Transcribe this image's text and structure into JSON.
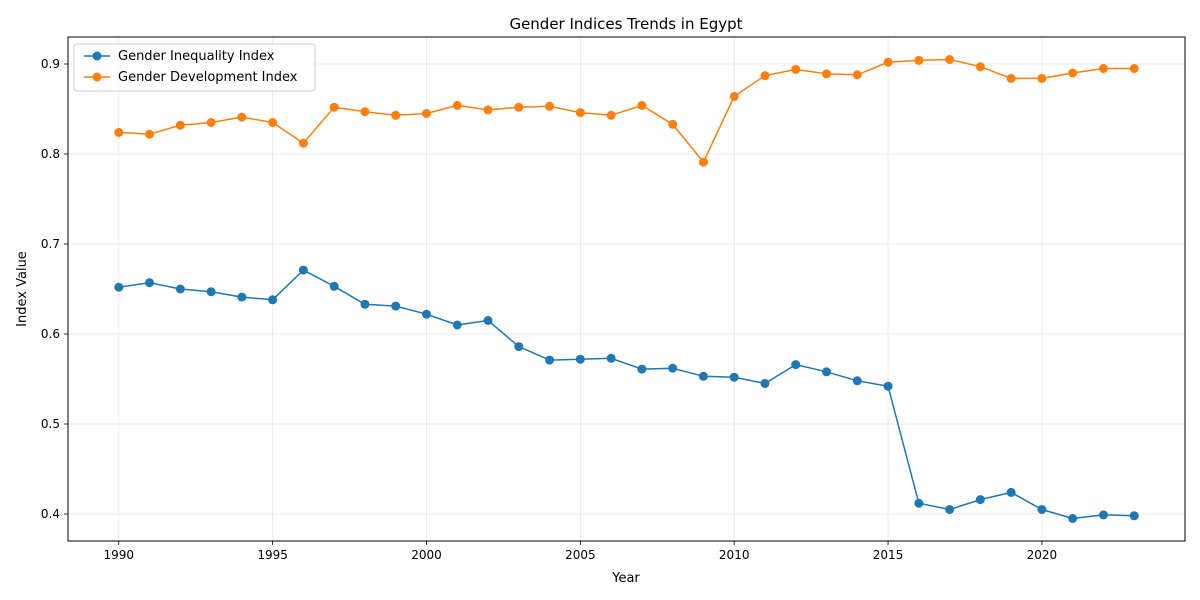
{
  "chart_data": {
    "type": "line",
    "title": "Gender Indices Trends in Egypt",
    "xlabel": "Year",
    "ylabel": "Index Value",
    "xlim": [
      1988.35,
      2024.65
    ],
    "ylim": [
      0.37,
      0.93
    ],
    "x_ticks": [
      1990,
      1995,
      2000,
      2005,
      2010,
      2015,
      2020
    ],
    "y_ticks": [
      0.4,
      0.5,
      0.6,
      0.7,
      0.8,
      0.9
    ],
    "grid": true,
    "legend_position": "upper-left",
    "x": [
      1990,
      1991,
      1992,
      1993,
      1994,
      1995,
      1996,
      1997,
      1998,
      1999,
      2000,
      2001,
      2002,
      2003,
      2004,
      2005,
      2006,
      2007,
      2008,
      2009,
      2010,
      2011,
      2012,
      2013,
      2014,
      2015,
      2016,
      2017,
      2018,
      2019,
      2020,
      2021,
      2022,
      2023
    ],
    "series": [
      {
        "name": "Gender Inequality Index",
        "color": "#1f77b4",
        "values": [
          0.652,
          0.657,
          0.65,
          0.647,
          0.641,
          0.638,
          0.671,
          0.653,
          0.633,
          0.631,
          0.622,
          0.61,
          0.615,
          0.586,
          0.571,
          0.572,
          0.573,
          0.561,
          0.562,
          0.553,
          0.552,
          0.545,
          0.566,
          0.558,
          0.548,
          0.542,
          0.412,
          0.405,
          0.416,
          0.424,
          0.405,
          0.395,
          0.399,
          0.398
        ]
      },
      {
        "name": "Gender Development Index",
        "color": "#ff7f0e",
        "values": [
          0.824,
          0.822,
          0.832,
          0.835,
          0.841,
          0.835,
          0.812,
          0.852,
          0.847,
          0.843,
          0.845,
          0.854,
          0.849,
          0.852,
          0.853,
          0.846,
          0.843,
          0.854,
          0.833,
          0.791,
          0.864,
          0.887,
          0.894,
          0.889,
          0.888,
          0.902,
          0.904,
          0.905,
          0.897,
          0.884,
          0.884,
          0.89,
          0.895,
          0.895
        ]
      }
    ]
  }
}
